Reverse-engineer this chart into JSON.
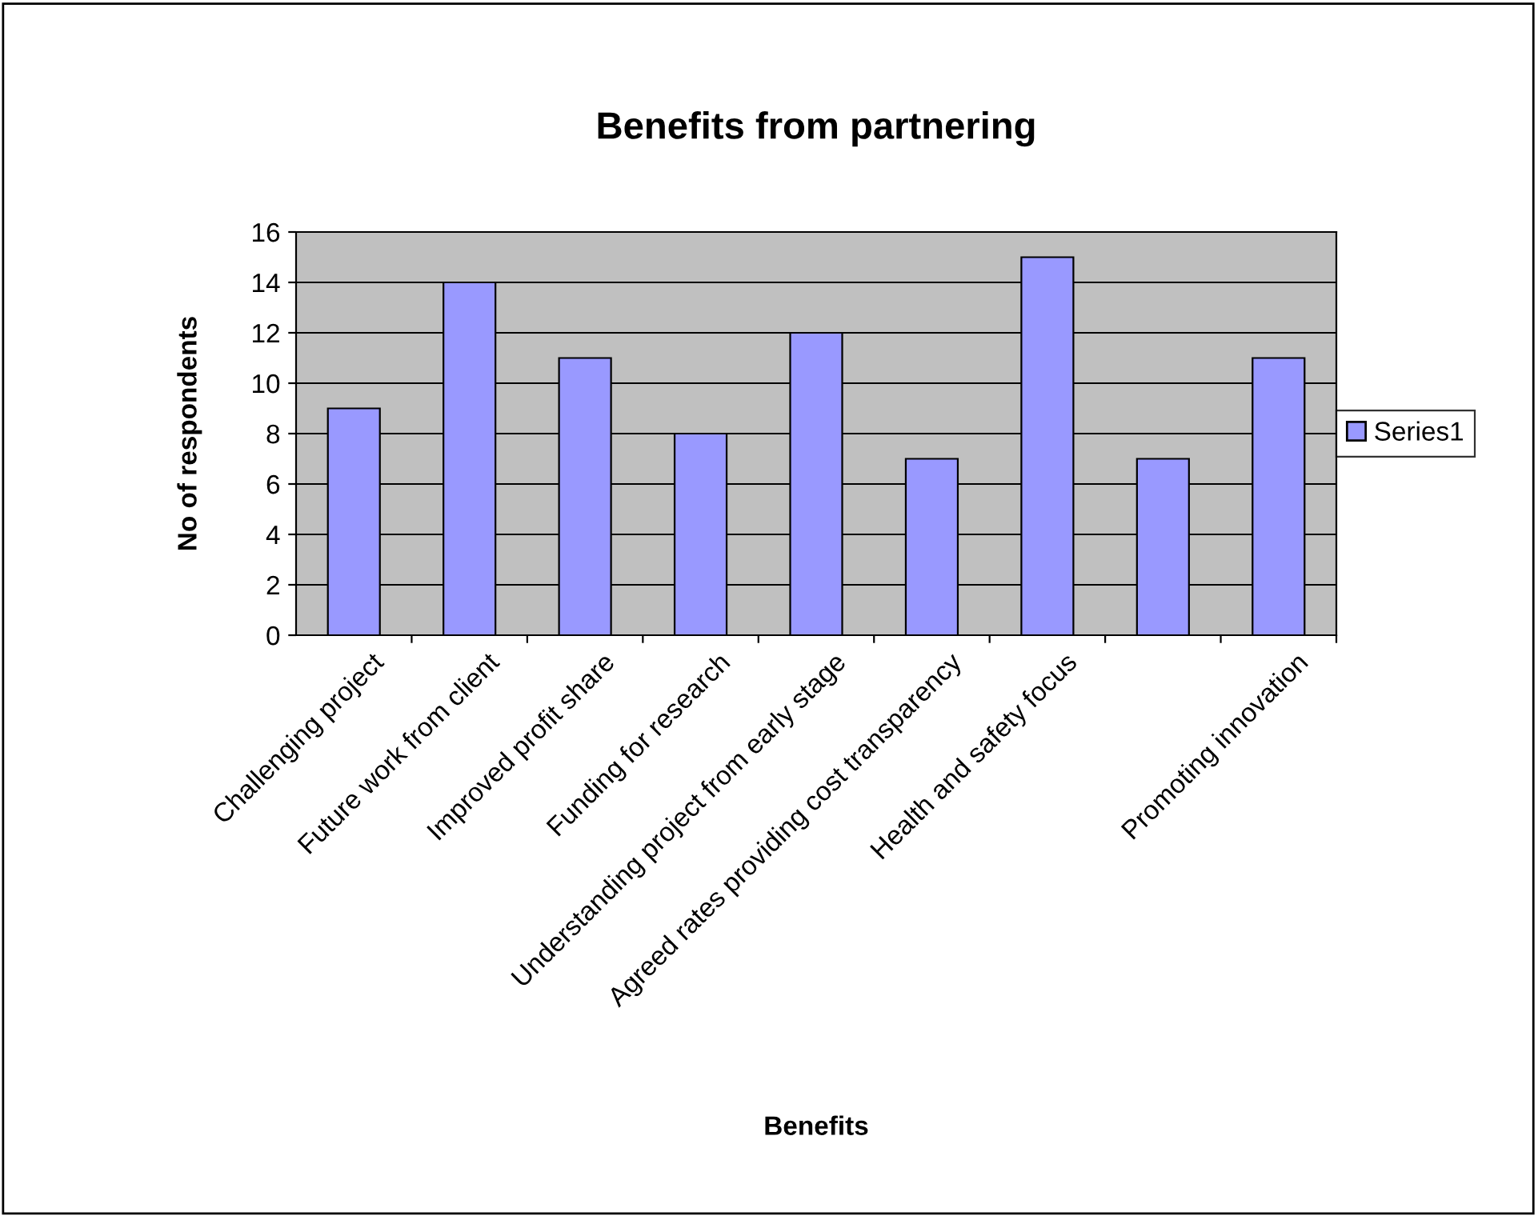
{
  "chart_data": {
    "type": "bar",
    "title": "Benefits from partnering",
    "xlabel": "Benefits",
    "ylabel": "No of respondents",
    "categories": [
      "Challenging project",
      "Future work from client",
      "Improved profit share",
      "Funding for research",
      "Understanding project from early stage",
      "Agreed rates providing cost transparency",
      "Health and safety focus",
      null,
      "Promoting innovation"
    ],
    "series": [
      {
        "name": "Series1",
        "color": "#9999ff",
        "values": [
          9,
          14,
          11,
          8,
          12,
          7,
          15,
          7,
          11
        ]
      }
    ],
    "ylim": [
      0,
      16
    ],
    "yticks": [
      0,
      2,
      4,
      6,
      8,
      10,
      12,
      14,
      16
    ],
    "grid": "y",
    "legend": "right"
  }
}
